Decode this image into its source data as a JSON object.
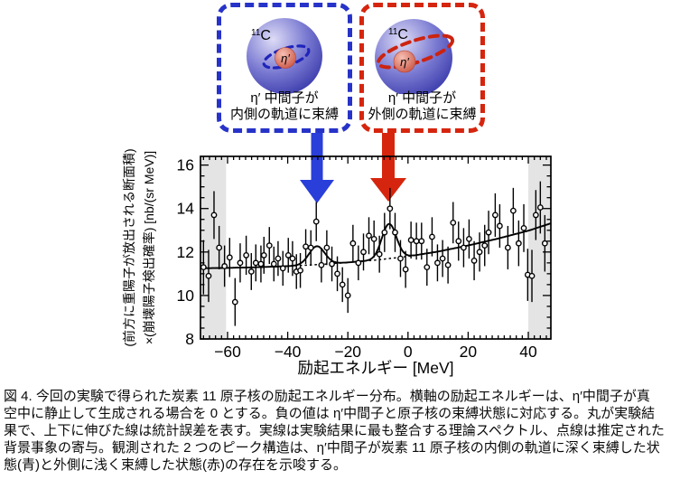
{
  "figure": {
    "boxes": [
      {
        "nucleus_mass": "11",
        "nucleus_symbol": "C",
        "meson": "η′",
        "line1": "η′ 中間子が",
        "line2": "内側の軌道に束縛",
        "border_color": "#2733c8",
        "orbit_color": "#1f24bb",
        "sphere_color": "#5555bd",
        "meson_color": "#d9695a"
      },
      {
        "nucleus_mass": "11",
        "nucleus_symbol": "C",
        "meson": "η′",
        "line1": "η′ 中間子が",
        "line2": "外側の軌道に束縛",
        "border_color": "#d6250e",
        "orbit_color": "#cc2310",
        "sphere_color": "#5555bd",
        "meson_color": "#d9695a"
      }
    ],
    "arrows": [
      {
        "name": "inner-state-arrow",
        "color": "#2a3ed9",
        "points_to_MeV": -30
      },
      {
        "name": "outer-state-arrow",
        "color": "#d6250e",
        "points_to_MeV": -6.5
      }
    ]
  },
  "chart_data": {
    "type": "scatter",
    "title": "",
    "xlabel": "励起エネルギー [MeV]",
    "ylabel_line1": "(前方に重陽子が放出される断面積)",
    "ylabel_line2": "×(崩壊陽子検出確率) [nb/(sr MeV)]",
    "xlim": [
      -69,
      47.5
    ],
    "ylim": [
      8,
      16.4
    ],
    "xticks": [
      -60,
      -40,
      -20,
      0,
      20,
      40
    ],
    "xtick_labels": [
      "−60",
      "−40",
      "−20",
      "0",
      "20",
      "40"
    ],
    "yticks": [
      8,
      10,
      12,
      14,
      16
    ],
    "ytick_labels": [
      "8",
      "10",
      "12",
      "14",
      "16"
    ],
    "x_minor_step": 2,
    "y_minor_step": 0.5,
    "grid": false,
    "legend": "none",
    "shaded_bands": [
      [
        -69,
        -60.5
      ],
      [
        40,
        47.5
      ]
    ],
    "band_color": "#e4e4e4",
    "background_curve": [
      [
        -69,
        11.25
      ],
      [
        -60,
        11.27
      ],
      [
        -50,
        11.3
      ],
      [
        -40,
        11.35
      ],
      [
        -30,
        11.42
      ],
      [
        -20,
        11.52
      ],
      [
        -10,
        11.64
      ],
      [
        0,
        11.8
      ],
      [
        10,
        12.02
      ],
      [
        20,
        12.3
      ],
      [
        30,
        12.62
      ],
      [
        40,
        12.98
      ],
      [
        47.5,
        13.32
      ]
    ],
    "peaks": [
      {
        "center": -30.3,
        "amplitude": 0.85,
        "sigma": 2.6
      },
      {
        "center": -6.3,
        "amplitude": 1.6,
        "sigma": 2.4
      }
    ],
    "points": [
      [
        -68.0,
        11.3,
        1.25
      ],
      [
        -66.3,
        10.9,
        1.2
      ],
      [
        -64.5,
        13.7,
        1.1
      ],
      [
        -62.8,
        12.2,
        1.0
      ],
      [
        -61.0,
        11.35,
        0.95
      ],
      [
        -59.3,
        11.75,
        0.9
      ],
      [
        -57.5,
        9.7,
        1.1
      ],
      [
        -55.8,
        11.5,
        0.9
      ],
      [
        -53.8,
        11.85,
        0.9
      ],
      [
        -52.1,
        11.1,
        0.85
      ],
      [
        -50.6,
        11.5,
        0.85
      ],
      [
        -48.9,
        11.45,
        0.85
      ],
      [
        -47.9,
        11.85,
        0.85
      ],
      [
        -46.1,
        12.3,
        0.85
      ],
      [
        -44.6,
        11.45,
        0.8
      ],
      [
        -43.2,
        11.7,
        0.8
      ],
      [
        -41.6,
        11.25,
        0.8
      ],
      [
        -39.8,
        11.85,
        0.8
      ],
      [
        -38.4,
        11.7,
        0.8
      ],
      [
        -37.1,
        11.1,
        0.8
      ],
      [
        -35.8,
        11.15,
        0.8
      ],
      [
        -34.0,
        12.25,
        0.8
      ],
      [
        -32.3,
        12.2,
        0.8
      ],
      [
        -30.5,
        13.4,
        0.9
      ],
      [
        -28.8,
        11.4,
        0.8
      ],
      [
        -27.0,
        12.2,
        0.8
      ],
      [
        -25.3,
        11.45,
        0.8
      ],
      [
        -23.5,
        11.0,
        0.8
      ],
      [
        -21.8,
        10.5,
        0.8
      ],
      [
        -20.0,
        10.0,
        0.8
      ],
      [
        -18.3,
        12.4,
        0.85
      ],
      [
        -16.5,
        11.5,
        0.8
      ],
      [
        -14.8,
        12.0,
        0.85
      ],
      [
        -13.0,
        12.75,
        0.85
      ],
      [
        -11.3,
        12.6,
        0.85
      ],
      [
        -9.5,
        11.9,
        0.85
      ],
      [
        -7.8,
        12.9,
        0.9
      ],
      [
        -6.0,
        14.0,
        0.95
      ],
      [
        -4.3,
        12.9,
        0.9
      ],
      [
        -2.5,
        11.7,
        0.85
      ],
      [
        -0.8,
        11.2,
        0.85
      ],
      [
        1.0,
        12.55,
        0.85
      ],
      [
        2.8,
        12.5,
        0.85
      ],
      [
        4.5,
        12.5,
        0.85
      ],
      [
        6.3,
        11.3,
        0.85
      ],
      [
        8.0,
        12.7,
        0.9
      ],
      [
        9.8,
        11.5,
        0.85
      ],
      [
        11.5,
        11.7,
        0.85
      ],
      [
        13.3,
        11.4,
        0.85
      ],
      [
        15.0,
        13.35,
        0.95
      ],
      [
        16.8,
        12.5,
        0.9
      ],
      [
        18.5,
        12.2,
        0.9
      ],
      [
        20.3,
        12.6,
        0.9
      ],
      [
        22.0,
        11.6,
        0.9
      ],
      [
        23.8,
        12.0,
        0.9
      ],
      [
        25.5,
        12.3,
        0.95
      ],
      [
        26.8,
        12.9,
        1.0
      ],
      [
        29.0,
        13.7,
        1.0
      ],
      [
        30.5,
        13.2,
        1.0
      ],
      [
        33.2,
        12.2,
        1.0
      ],
      [
        35.0,
        13.9,
        1.05
      ],
      [
        36.8,
        12.4,
        1.05
      ],
      [
        38.5,
        13.1,
        1.1
      ],
      [
        39.8,
        10.95,
        1.2
      ],
      [
        41.2,
        10.9,
        1.2
      ],
      [
        42.5,
        13.7,
        1.15
      ],
      [
        44.0,
        14.05,
        1.2
      ],
      [
        45.5,
        12.4,
        1.3
      ]
    ]
  },
  "caption": {
    "lines": [
      "図 4.  今回の実験で得られた炭素 11 原子核の励起エネルギー分布。横軸の励起エネルギーは、η′中間子が真",
      "空中に静止して生成される場合を 0 とする。負の値は η′中間子と原子核の束縛状態に対応する。丸が実験結",
      "果で、上下に伸びた線は統計誤差を表す。実線は実験結果に最も整合する理論スペクトル、点線は推定された",
      "背景事象の寄与。観測された 2 つのピーク構造は、η′中間子が炭素 11 原子核の内側の軌道に深く束縛した状",
      "態(青)と外側に浅く束縛した状態(赤)の存在を示唆する。"
    ]
  }
}
